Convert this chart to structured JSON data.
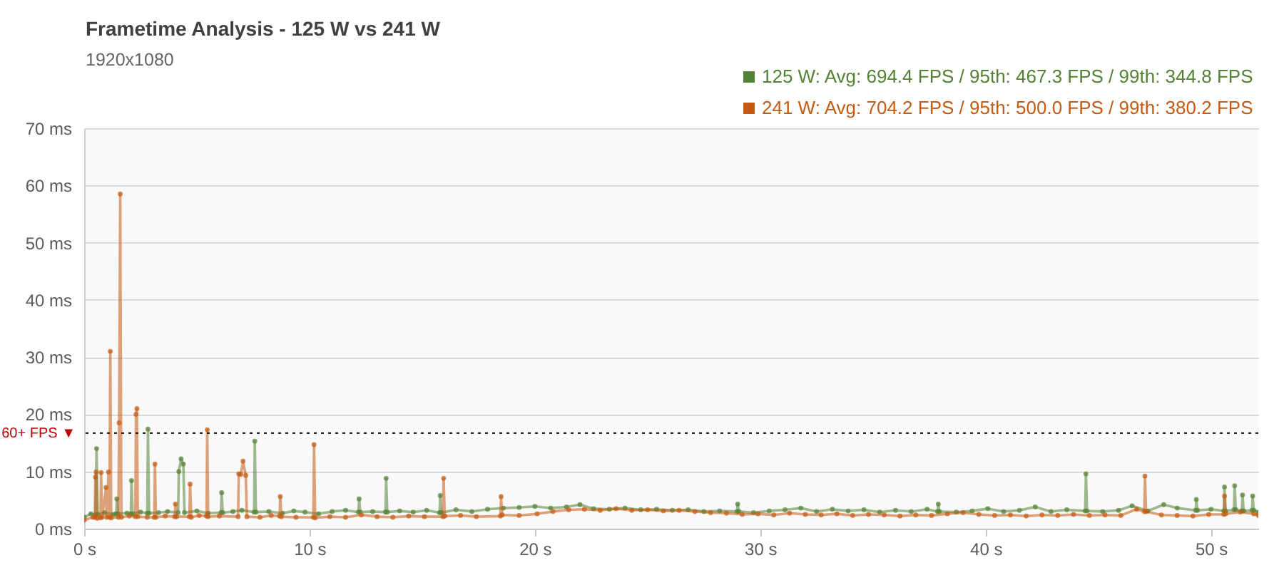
{
  "chart_data": {
    "type": "line",
    "title": "Frametime Analysis - 125 W vs 241 W",
    "subtitle": "1920x1080",
    "xlim": [
      0,
      52.1
    ],
    "xticks": [
      {
        "value": 0,
        "label": "0 s"
      },
      {
        "value": 10,
        "label": "10 s"
      },
      {
        "value": 20,
        "label": "20 s"
      },
      {
        "value": 30,
        "label": "30 s"
      },
      {
        "value": 40,
        "label": "40 s"
      },
      {
        "value": 50,
        "label": "50 s"
      }
    ],
    "ylim": [
      0,
      70
    ],
    "yticks": [
      {
        "value": 0,
        "label": "0 ms"
      },
      {
        "value": 10,
        "label": "10 ms"
      },
      {
        "value": 20,
        "label": "20 ms"
      },
      {
        "value": 30,
        "label": "30 ms"
      },
      {
        "value": 40,
        "label": "40 ms"
      },
      {
        "value": 50,
        "label": "50 ms"
      },
      {
        "value": 60,
        "label": "60 ms"
      },
      {
        "value": 70,
        "label": "70 ms"
      }
    ],
    "grid": "y",
    "legend": "top right",
    "marker": "circle",
    "line_style": "solid",
    "ref_lines": [
      {
        "axis": "y",
        "value": 16.7,
        "label": "60+ FPS ▼",
        "color": "#222222",
        "line_style": "dotted"
      }
    ],
    "series": [
      {
        "name": "125 W: Avg: 694.4 FPS / 95th: 467.3 FPS / 99th: 344.8 FPS",
        "color": "#548235",
        "x": [
          0,
          0.3,
          0.5,
          0.55,
          0.6,
          0.9,
          1.3,
          1.42,
          1.45,
          1.5,
          1.9,
          2.07,
          2.1,
          2.15,
          2.5,
          2.8,
          2.83,
          2.88,
          3.3,
          3.7,
          4.17,
          4.2,
          4.3,
          4.4,
          4.45,
          5.0,
          5.5,
          6.07,
          6.1,
          6.15,
          6.6,
          7.0,
          7.54,
          7.57,
          7.62,
          8.2,
          8.8,
          9.3,
          9.8,
          10.4,
          11.0,
          11.6,
          12.17,
          12.2,
          12.25,
          12.8,
          13.37,
          13.4,
          13.45,
          14.0,
          14.6,
          15.2,
          15.77,
          15.8,
          15.85,
          16.5,
          17.2,
          17.9,
          18.6,
          19.3,
          20.0,
          20.7,
          21.4,
          22.0,
          22.6,
          23.3,
          24.0,
          24.7,
          25.4,
          26.1,
          26.8,
          27.5,
          28.2,
          28.97,
          29.0,
          29.05,
          29.7,
          30.4,
          31.1,
          31.8,
          32.5,
          33.2,
          33.9,
          34.6,
          35.3,
          36.0,
          36.7,
          37.4,
          37.87,
          37.9,
          37.95,
          38.7,
          39.4,
          40.1,
          40.8,
          41.5,
          42.2,
          42.9,
          43.6,
          44.42,
          44.45,
          44.5,
          45.2,
          45.9,
          46.5,
          47.2,
          47.9,
          48.5,
          49.32,
          49.35,
          49.4,
          50.0,
          50.57,
          50.6,
          50.65,
          51.02,
          51.05,
          51.1,
          51.37,
          51.4,
          51.45,
          51.82,
          51.85,
          51.9,
          52.1
        ],
        "values": [
          2.0,
          2.6,
          2.4,
          14.0,
          2.5,
          2.8,
          2.5,
          2.6,
          5.2,
          2.6,
          2.7,
          2.6,
          8.4,
          2.6,
          2.9,
          2.7,
          17.4,
          2.7,
          2.8,
          3.0,
          2.8,
          10.0,
          12.2,
          11.3,
          2.8,
          3.1,
          2.7,
          2.8,
          6.3,
          2.8,
          3.0,
          3.2,
          2.9,
          15.3,
          2.9,
          3.0,
          2.7,
          3.1,
          2.9,
          2.6,
          3.0,
          3.2,
          2.9,
          5.2,
          2.9,
          3.0,
          2.9,
          8.8,
          2.9,
          3.1,
          2.9,
          3.2,
          2.8,
          5.8,
          2.8,
          3.3,
          3.0,
          3.4,
          3.6,
          3.7,
          3.9,
          3.6,
          3.8,
          4.2,
          3.5,
          3.4,
          3.6,
          3.3,
          3.4,
          3.2,
          3.3,
          3.0,
          3.1,
          3.0,
          4.3,
          3.0,
          2.8,
          3.1,
          3.3,
          3.6,
          3.0,
          3.4,
          3.1,
          3.3,
          2.9,
          3.2,
          3.0,
          3.4,
          3.0,
          4.3,
          3.0,
          2.9,
          3.1,
          3.5,
          3.0,
          3.2,
          3.8,
          3.0,
          3.3,
          3.1,
          9.6,
          3.1,
          3.0,
          3.2,
          4.0,
          3.1,
          4.2,
          3.6,
          3.2,
          5.1,
          3.2,
          3.4,
          3.1,
          7.3,
          3.1,
          3.3,
          7.5,
          3.3,
          3.1,
          5.9,
          3.1,
          3.2,
          5.7,
          3.2,
          2.9
        ]
      },
      {
        "name": "241 W: Avg: 704.2 FPS / 95th: 500.0 FPS / 99th: 380.2 FPS",
        "color": "#c55a11",
        "x": [
          0,
          0.4,
          0.47,
          0.5,
          0.53,
          0.58,
          0.72,
          0.75,
          0.8,
          0.97,
          1.0,
          1.08,
          1.12,
          1.16,
          1.2,
          1.52,
          1.55,
          1.6,
          1.65,
          2.0,
          2.27,
          2.3,
          2.34,
          2.38,
          2.8,
          3.11,
          3.14,
          3.18,
          3.6,
          4.02,
          4.05,
          4.1,
          4.67,
          4.7,
          4.75,
          5.1,
          5.43,
          5.46,
          5.5,
          6.0,
          6.83,
          6.86,
          6.95,
          7.05,
          7.17,
          7.22,
          7.8,
          8.3,
          8.67,
          8.7,
          8.75,
          9.4,
          10.17,
          10.2,
          10.25,
          10.9,
          11.6,
          12.3,
          13.0,
          13.7,
          14.4,
          15.1,
          15.92,
          15.95,
          16.0,
          16.7,
          17.4,
          18.47,
          18.5,
          18.55,
          19.3,
          20.1,
          20.8,
          21.5,
          22.2,
          22.9,
          23.6,
          24.3,
          25.0,
          25.7,
          26.4,
          27.1,
          27.8,
          28.5,
          29.2,
          29.9,
          30.6,
          31.3,
          32.0,
          32.7,
          33.4,
          34.1,
          34.8,
          35.5,
          36.2,
          36.9,
          37.6,
          38.3,
          39.0,
          39.7,
          40.4,
          41.1,
          41.8,
          42.5,
          43.2,
          43.9,
          44.6,
          45.3,
          46.0,
          46.7,
          47.04,
          47.07,
          47.12,
          47.8,
          48.5,
          49.2,
          49.9,
          50.57,
          50.6,
          50.65,
          51.3,
          51.9,
          52.1
        ],
        "values": [
          1.5,
          2.0,
          2.0,
          9.0,
          9.9,
          1.8,
          1.9,
          9.8,
          2.0,
          7.2,
          2.0,
          9.9,
          2.0,
          31.0,
          1.9,
          2.0,
          18.5,
          58.5,
          2.0,
          2.2,
          2.1,
          20.0,
          21.0,
          2.1,
          2.0,
          2.0,
          11.3,
          2.0,
          2.2,
          2.1,
          4.3,
          2.1,
          2.1,
          7.8,
          2.0,
          2.3,
          2.2,
          17.3,
          2.1,
          2.2,
          2.1,
          9.6,
          9.5,
          11.8,
          9.3,
          2.1,
          2.0,
          2.3,
          2.2,
          5.6,
          2.1,
          2.0,
          2.0,
          14.7,
          1.9,
          2.1,
          2.0,
          2.4,
          2.1,
          2.0,
          2.2,
          2.1,
          2.1,
          8.8,
          2.2,
          2.3,
          2.1,
          2.2,
          5.6,
          2.4,
          2.3,
          2.6,
          3.0,
          3.3,
          3.4,
          3.2,
          3.5,
          3.2,
          3.3,
          3.1,
          3.2,
          3.0,
          2.8,
          2.7,
          2.5,
          2.6,
          2.4,
          2.7,
          2.5,
          2.4,
          2.6,
          2.3,
          2.5,
          2.4,
          2.2,
          2.4,
          2.3,
          2.6,
          2.8,
          2.5,
          2.3,
          2.4,
          2.2,
          2.4,
          2.3,
          2.5,
          2.3,
          2.4,
          2.3,
          3.4,
          3.0,
          9.2,
          3.0,
          2.4,
          2.3,
          2.2,
          2.5,
          2.5,
          5.7,
          2.6,
          2.9,
          2.6,
          2.3
        ]
      }
    ]
  }
}
